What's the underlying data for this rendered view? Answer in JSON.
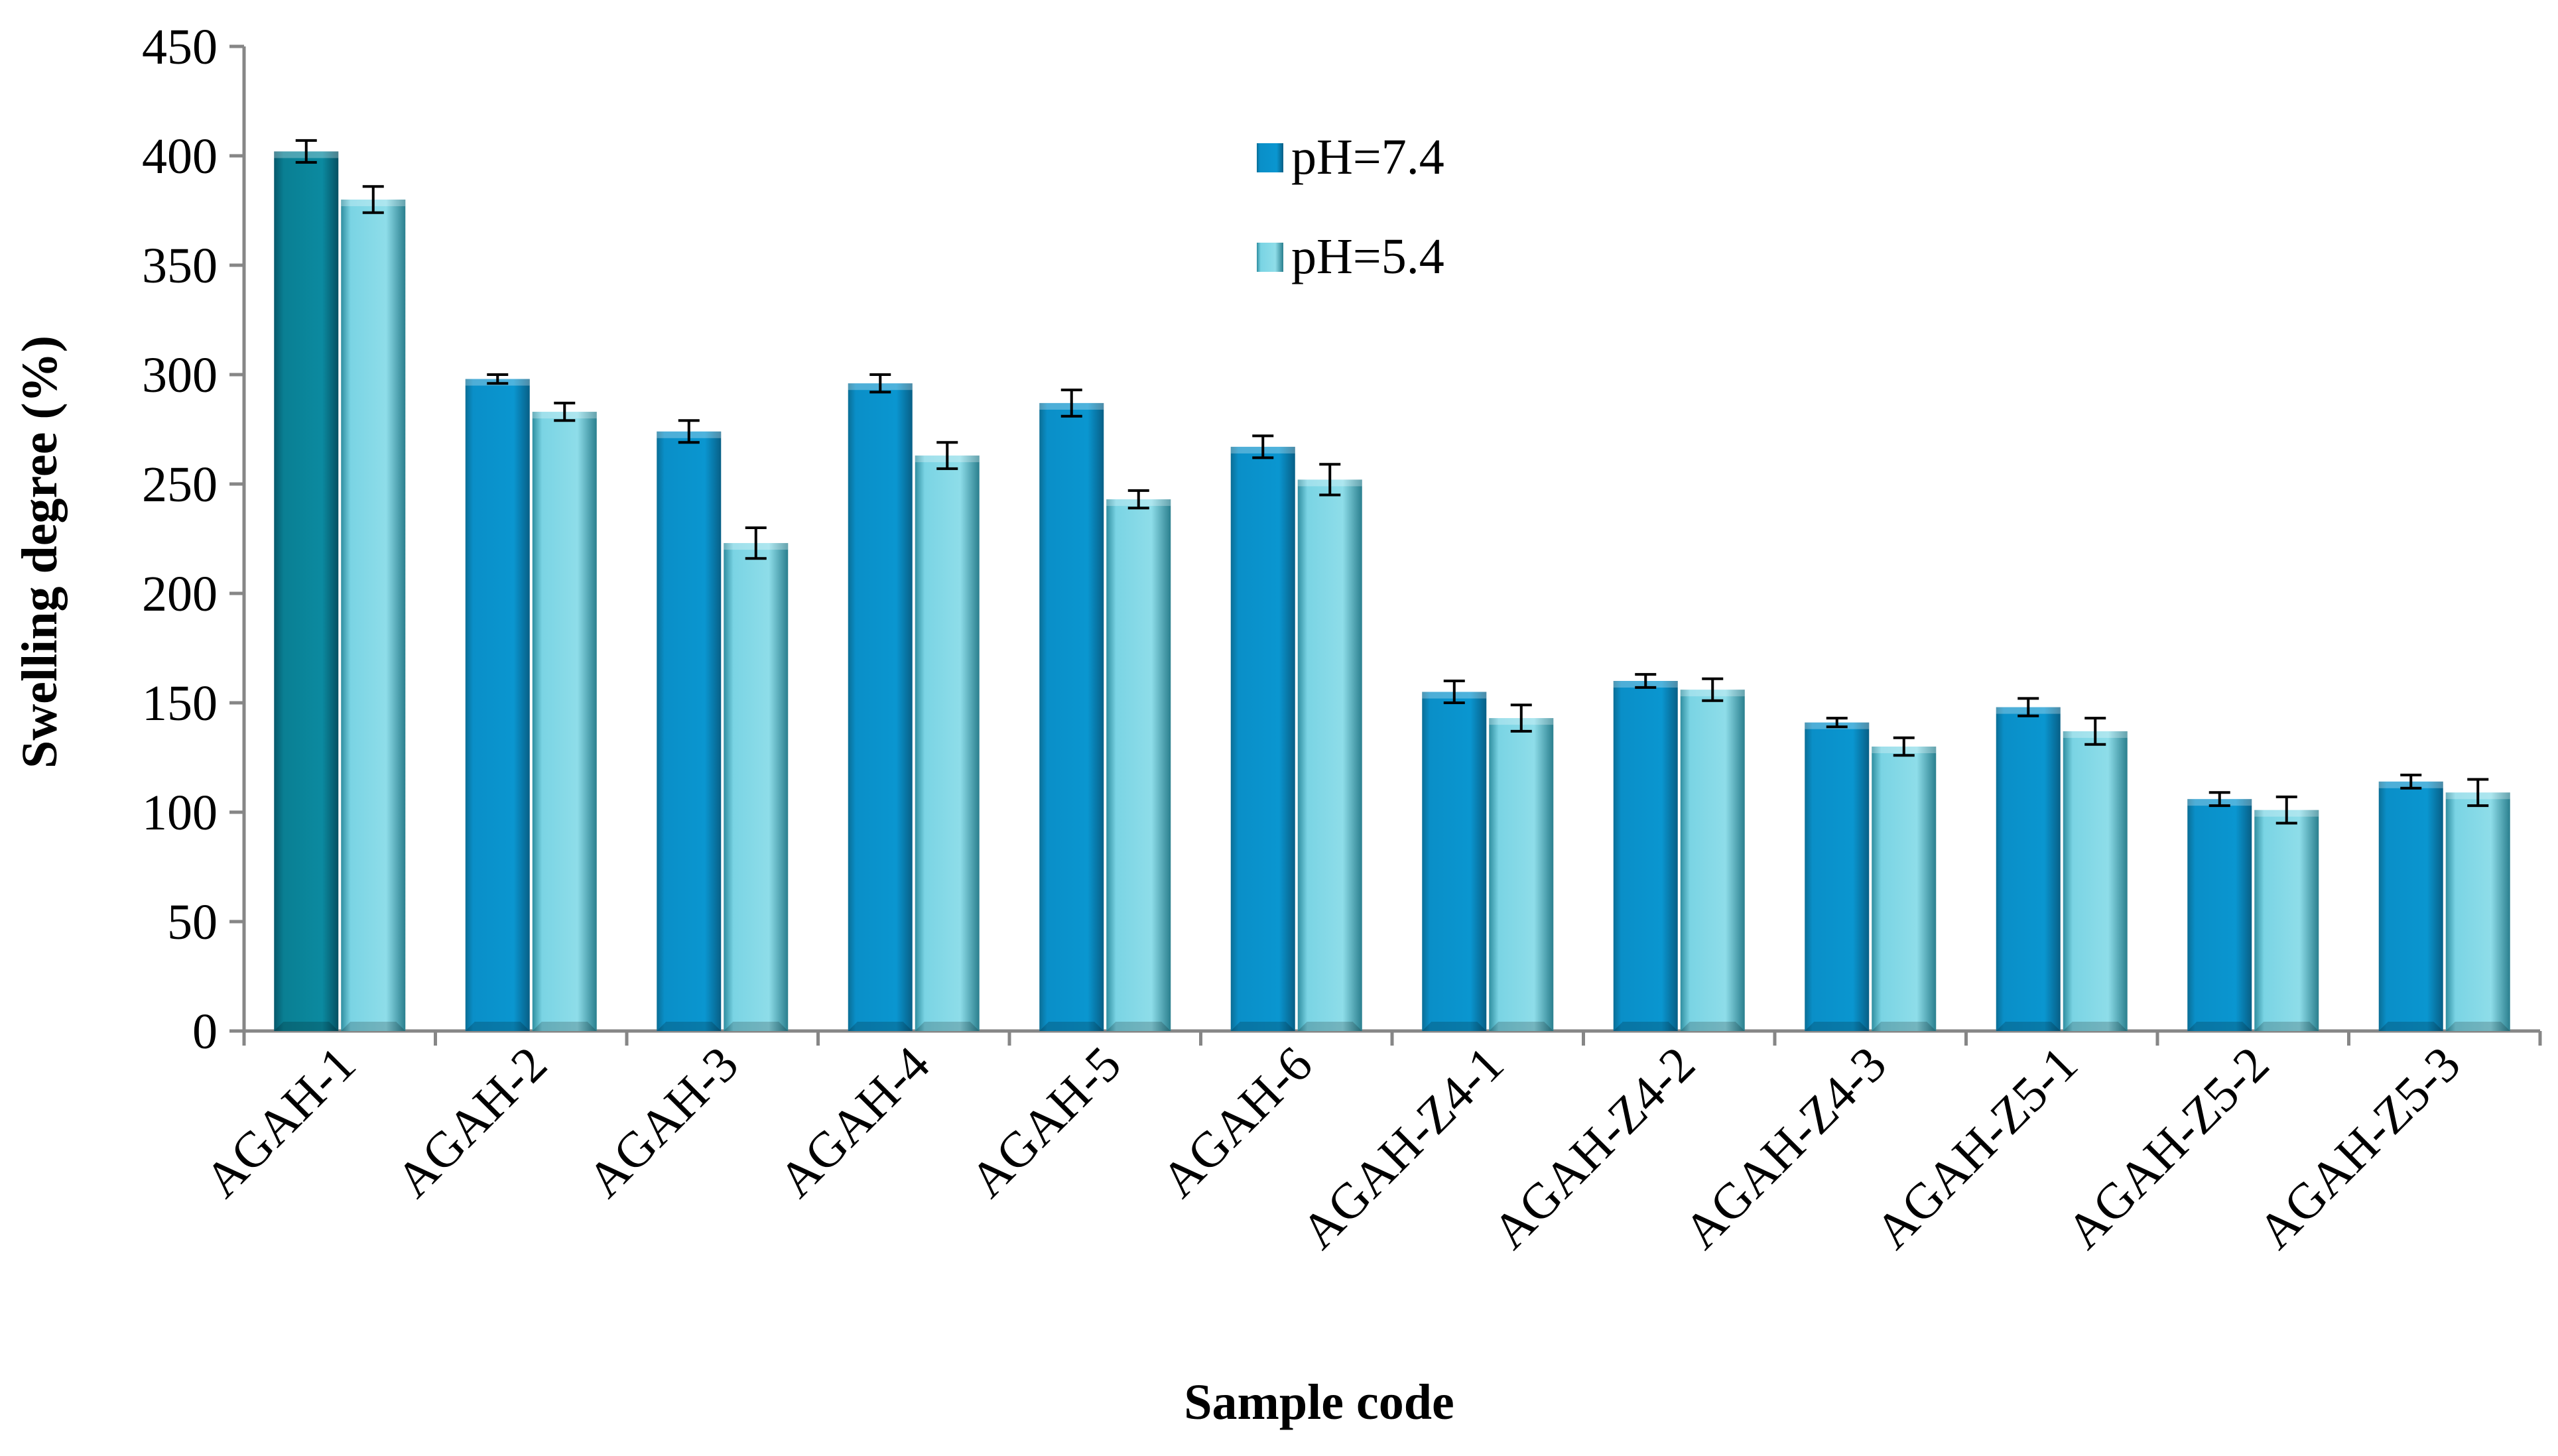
{
  "chart_data": {
    "type": "bar",
    "title": "",
    "xlabel": "Sample code",
    "ylabel": "Swelling degree (%)",
    "ylim": [
      0,
      450
    ],
    "yticks": [
      0,
      50,
      100,
      150,
      200,
      250,
      300,
      350,
      400,
      450
    ],
    "grid": false,
    "legend_position": "top-center",
    "categories": [
      "AGAH-1",
      "AGAH-2",
      "AGAH-3",
      "AGAH-4",
      "AGAH-5",
      "AGAH-6",
      "AGAH-Z4-1",
      "AGAH-Z4-2",
      "AGAH-Z4-3",
      "AGAH-Z5-1",
      "AGAH-Z5-2",
      "AGAH-Z5-3"
    ],
    "series": [
      {
        "name": "pH=7.4",
        "color": "#0a8fc8",
        "highlight_color": "#0a7f93",
        "values": [
          402,
          298,
          274,
          296,
          287,
          267,
          155,
          160,
          141,
          148,
          106,
          114
        ],
        "errors": [
          5,
          2,
          5,
          4,
          6,
          5,
          5,
          3,
          2,
          4,
          3,
          3
        ]
      },
      {
        "name": "pH=5.4",
        "color": "#7ad4e4",
        "values": [
          380,
          283,
          223,
          263,
          243,
          252,
          143,
          156,
          130,
          137,
          101,
          109
        ],
        "errors": [
          6,
          4,
          7,
          6,
          4,
          7,
          6,
          5,
          4,
          6,
          6,
          6
        ]
      }
    ]
  }
}
